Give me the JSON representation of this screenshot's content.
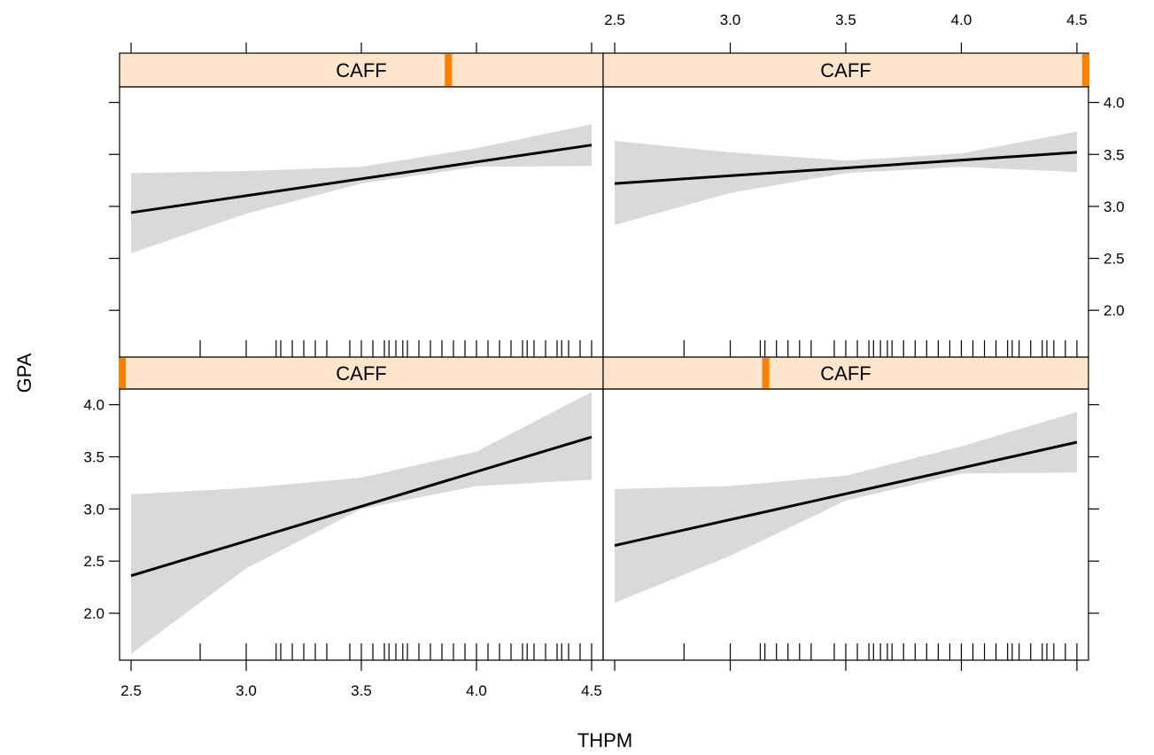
{
  "chart_data": {
    "type": "line",
    "layout": "2x2 trellis",
    "xlabel": "THPM",
    "ylabel": "GPA",
    "xlim": [
      2.45,
      4.55
    ],
    "ylim": [
      1.55,
      4.15
    ],
    "x_ticks": [
      2.5,
      3.0,
      3.5,
      4.0,
      4.5
    ],
    "x_tick_labels": [
      "2.5",
      "3.0",
      "3.5",
      "4.0",
      "4.5"
    ],
    "y_ticks": [
      2.0,
      2.5,
      3.0,
      3.5,
      4.0
    ],
    "y_tick_labels": [
      "2.0",
      "2.5",
      "3.0",
      "3.5",
      "4.0"
    ],
    "rug_x": [
      2.8,
      3.0,
      3.13,
      3.15,
      3.2,
      3.25,
      3.3,
      3.35,
      3.45,
      3.5,
      3.55,
      3.6,
      3.62,
      3.65,
      3.68,
      3.7,
      3.75,
      3.8,
      3.85,
      3.9,
      3.95,
      4.0,
      4.05,
      4.1,
      4.15,
      4.2,
      4.22,
      4.25,
      4.3,
      4.35,
      4.37,
      4.4,
      4.45,
      4.5
    ],
    "colors": {
      "line": "#000000",
      "band": "#d9d9d9",
      "strip_bg": "#ffe5cc",
      "strip_marker": "#ff7f00"
    },
    "panels": [
      {
        "position": "top-left",
        "strip_label": "CAFF",
        "strip_marker_fraction": 0.68,
        "line": {
          "x": [
            2.5,
            4.5
          ],
          "y": [
            2.94,
            3.59
          ]
        },
        "band": {
          "x": [
            2.5,
            3.0,
            3.5,
            4.0,
            4.5
          ],
          "lower": [
            2.55,
            2.93,
            3.22,
            3.38,
            3.39
          ],
          "upper": [
            3.32,
            3.34,
            3.38,
            3.56,
            3.79
          ]
        }
      },
      {
        "position": "top-right",
        "strip_label": "CAFF",
        "strip_marker_fraction": 1.0,
        "line": {
          "x": [
            2.5,
            4.5
          ],
          "y": [
            3.22,
            3.52
          ]
        },
        "band": {
          "x": [
            2.5,
            3.0,
            3.5,
            4.0,
            4.5
          ],
          "lower": [
            2.82,
            3.13,
            3.32,
            3.38,
            3.33
          ],
          "upper": [
            3.63,
            3.52,
            3.44,
            3.51,
            3.72
          ]
        }
      },
      {
        "position": "bottom-left",
        "strip_label": "CAFF",
        "strip_marker_fraction": 0.0,
        "line": {
          "x": [
            2.5,
            4.5
          ],
          "y": [
            2.36,
            3.69
          ]
        },
        "band": {
          "x": [
            2.5,
            3.0,
            3.5,
            4.0,
            4.5
          ],
          "lower": [
            1.61,
            2.43,
            3.0,
            3.22,
            3.28
          ],
          "upper": [
            3.14,
            3.2,
            3.3,
            3.55,
            4.12
          ]
        }
      },
      {
        "position": "bottom-right",
        "strip_label": "CAFF",
        "strip_marker_fraction": 0.335,
        "line": {
          "x": [
            2.5,
            4.5
          ],
          "y": [
            2.65,
            3.64
          ]
        },
        "band": {
          "x": [
            2.5,
            3.0,
            3.5,
            4.0,
            4.5
          ],
          "lower": [
            2.1,
            2.55,
            3.08,
            3.34,
            3.35
          ],
          "upper": [
            3.19,
            3.22,
            3.32,
            3.6,
            3.93
          ]
        }
      }
    ]
  }
}
